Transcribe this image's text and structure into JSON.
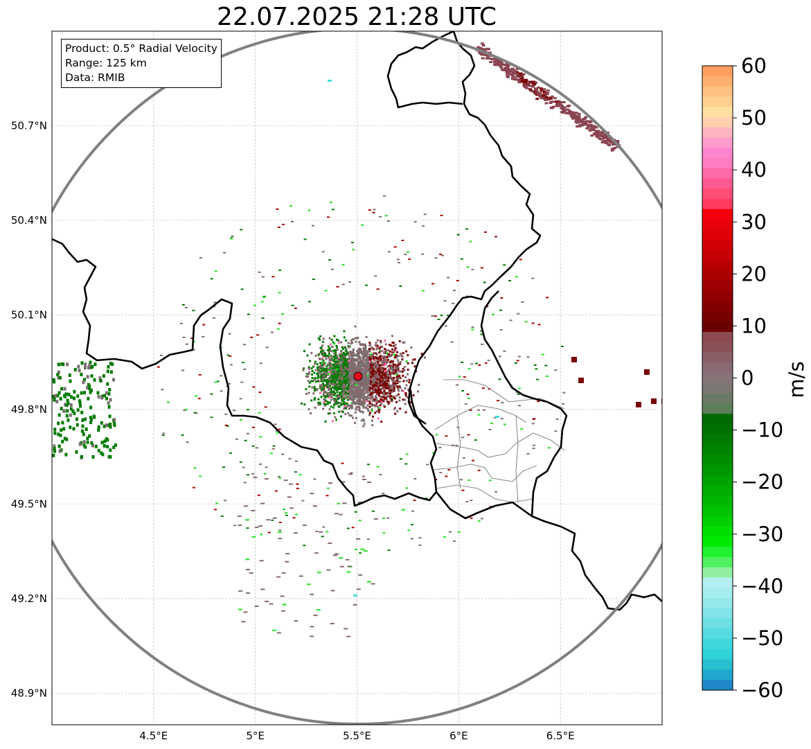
{
  "title": "22.07.2025 21:28 UTC",
  "info_box": {
    "product": "Product: 0.5° Radial Velocity",
    "range": "Range: 125 km",
    "data": "Data: RMIB"
  },
  "axes": {
    "x_ticks": [
      "4.5°E",
      "5°E",
      "5.5°E",
      "6°E",
      "6.5°E"
    ],
    "y_ticks": [
      "50.7°N",
      "50.4°N",
      "50.1°N",
      "49.8°N",
      "49.5°N",
      "49.2°N",
      "48.9°N"
    ],
    "lon_range": [
      4.0,
      7.0
    ],
    "lat_range": [
      48.8,
      51.0
    ]
  },
  "radar": {
    "site_lon": 5.505,
    "site_lat": 49.914,
    "site_marker_color": "#e0101a",
    "range_ring_color": "#808080"
  },
  "colorbar": {
    "label": "m/s",
    "min": -60,
    "max": 60,
    "tick_labels": [
      "60",
      "50",
      "40",
      "30",
      "20",
      "10",
      "0",
      "−10",
      "−20",
      "−30",
      "−40",
      "−50",
      "−60"
    ],
    "colors_top_to_bottom": [
      "#ffa060",
      "#ffb070",
      "#ffc080",
      "#ffd090",
      "#ffe0a0",
      "#ffd0b0",
      "#ffb5c0",
      "#ff9dce",
      "#ff85d0",
      "#ff7dc0",
      "#ff6aa8",
      "#ff5a90",
      "#ff4d78",
      "#ff3a60",
      "#f5000a",
      "#e8000a",
      "#dd0008",
      "#d00006",
      "#c40004",
      "#b70002",
      "#aa0000",
      "#9d0000",
      "#900000",
      "#830000",
      "#760000",
      "#690000",
      "#8a4a50",
      "#8a5258",
      "#8a5e66",
      "#8a6b74",
      "#887478",
      "#7d7873",
      "#6a7a66",
      "#5c7e58",
      "#006a00",
      "#007000",
      "#007a00",
      "#008400",
      "#008e00",
      "#009800",
      "#00a200",
      "#00ac00",
      "#00b600",
      "#00c200",
      "#00d000",
      "#00de00",
      "#00ea00",
      "#20f030",
      "#50f060",
      "#90f0a0",
      "#b5eef0",
      "#a5ecee",
      "#95e8ea",
      "#80e4e8",
      "#6adfe4",
      "#55dbe0",
      "#40d7dc",
      "#30d3da",
      "#28c0d0",
      "#20a8d0",
      "#1f88c8"
    ]
  },
  "palette": {
    "receding_dark": "#7a0000",
    "receding": "#aa0000",
    "near_zero_brown": "#86686c",
    "near_zero_gray": "#7a7070",
    "approaching": "#007a00",
    "approaching_bright": "#1fe21f",
    "aliased_cyan": "#3fdede",
    "aliased_pink": "#ff6ab0",
    "storm_mauve": "#8a4450",
    "storm_dark": "#7a0000"
  }
}
